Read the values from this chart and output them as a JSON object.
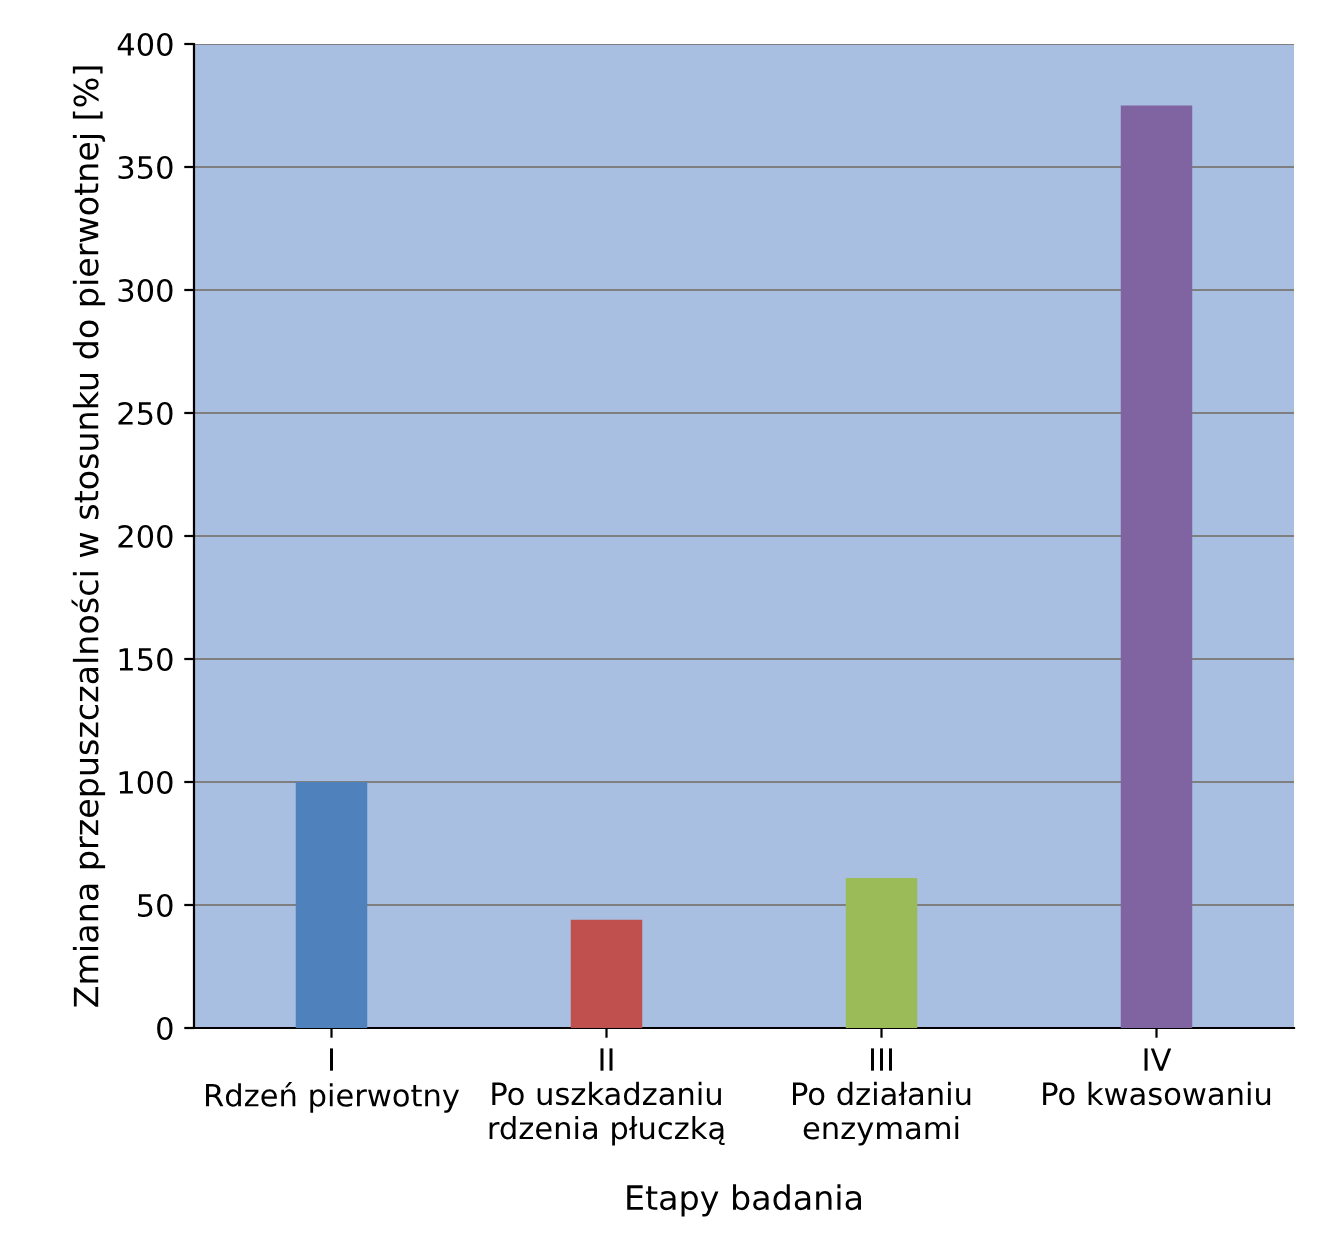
{
  "chart_data": {
    "type": "bar",
    "xlabel": "Etapy badania",
    "ylabel": "Zmiana przepuszczalności w stosunku do pierwotnej [%]",
    "categories": [
      "I\nRdzeń pierwotny",
      "II\nPo uszkadzaniu\nrdzenia płuczką",
      "III\nPo działaniu\nenzymami",
      "IV\nPo kwasowaniu"
    ],
    "values": [
      100,
      44,
      61,
      375
    ],
    "colors": [
      "#4f81bd",
      "#c0504d",
      "#9bbb59",
      "#8064a2"
    ],
    "ylim": [
      0,
      400
    ],
    "yticks": [
      0,
      50,
      100,
      150,
      200,
      250,
      300,
      350,
      400
    ],
    "grid": "y",
    "legend": false
  }
}
